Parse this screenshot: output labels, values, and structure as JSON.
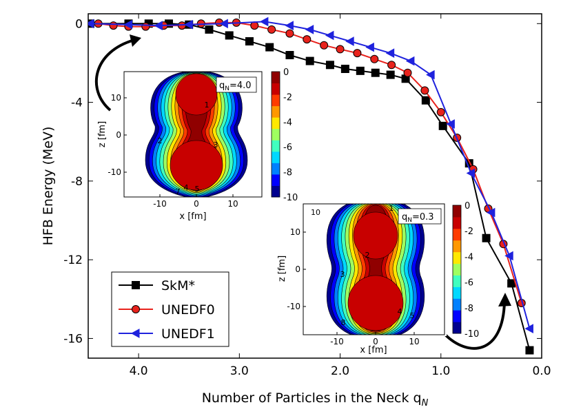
{
  "chart_data": [
    {
      "type": "line",
      "xlabel": "Number of Particles in the Neck q",
      "xlabel_sub": "N",
      "ylabel": "HFB Energy (MeV)",
      "xlim": [
        4.5,
        0.0
      ],
      "ylim": [
        -17,
        0.5
      ],
      "x_ticks": [
        4.0,
        3.0,
        2.0,
        1.0,
        0.0
      ],
      "x_tick_labels": [
        "4.0",
        "3.0",
        "2.0",
        "1.0",
        "0.0"
      ],
      "y_ticks": [
        0,
        -4,
        -8,
        -12,
        -16
      ],
      "y_tick_labels": [
        "0",
        "-4",
        "-8",
        "-12",
        "-16"
      ],
      "legend_position": "bottom-left",
      "series": [
        {
          "name": "SkM*",
          "color": "#000000",
          "marker": "square",
          "x": [
            4.48,
            4.1,
            3.9,
            3.7,
            3.5,
            3.3,
            3.1,
            2.9,
            2.7,
            2.5,
            2.3,
            2.1,
            1.95,
            1.8,
            1.65,
            1.5,
            1.35,
            1.15,
            0.98,
            0.72,
            0.55,
            0.3,
            0.12
          ],
          "y": [
            0.0,
            0.0,
            0.0,
            0.0,
            -0.05,
            -0.3,
            -0.6,
            -0.9,
            -1.2,
            -1.6,
            -1.9,
            -2.1,
            -2.3,
            -2.4,
            -2.5,
            -2.6,
            -2.8,
            -3.9,
            -5.2,
            -7.1,
            -10.9,
            -13.2,
            -16.6
          ]
        },
        {
          "name": "UNEDF0",
          "color": "#e8221c",
          "marker": "circle",
          "x": [
            4.4,
            4.25,
            4.1,
            3.93,
            3.75,
            3.57,
            3.38,
            3.2,
            3.03,
            2.85,
            2.68,
            2.5,
            2.33,
            2.16,
            2.0,
            1.83,
            1.66,
            1.49,
            1.33,
            1.16,
            1.0,
            0.84,
            0.68,
            0.53,
            0.38,
            0.2
          ],
          "y": [
            0.0,
            -0.1,
            -0.15,
            -0.15,
            -0.1,
            -0.1,
            0.0,
            0.05,
            0.05,
            -0.1,
            -0.3,
            -0.5,
            -0.8,
            -1.1,
            -1.3,
            -1.5,
            -1.8,
            -2.1,
            -2.5,
            -3.4,
            -4.5,
            -5.8,
            -7.4,
            -9.4,
            -11.2,
            -14.2
          ]
        },
        {
          "name": "UNEDF1",
          "color": "#1f22dd",
          "marker": "triangle-left",
          "x": [
            4.48,
            4.1,
            3.8,
            3.5,
            3.15,
            2.75,
            2.5,
            2.3,
            2.1,
            1.9,
            1.7,
            1.5,
            1.3,
            1.1,
            0.9,
            0.7,
            0.5,
            0.32,
            0.12
          ],
          "y": [
            0.0,
            -0.05,
            -0.1,
            -0.05,
            0.0,
            0.1,
            -0.1,
            -0.3,
            -0.6,
            -0.9,
            -1.2,
            -1.5,
            -1.9,
            -2.6,
            -5.1,
            -7.6,
            -9.6,
            -11.8,
            -15.5
          ]
        }
      ]
    },
    {
      "type": "heatmap",
      "panel": "inset-top",
      "annotation_main": "q",
      "annotation_sub": "N",
      "annotation_value": "=4.0",
      "xlabel": "x [fm]",
      "ylabel": "z [fm]",
      "x_ticks": [
        -10,
        0,
        10
      ],
      "y_ticks": [
        10,
        0,
        -10
      ],
      "contour_labels": [
        "1",
        "2",
        "3",
        "4",
        "5",
        "7"
      ],
      "colorbar_range": [
        -10,
        0
      ],
      "colorbar_ticks": [
        0,
        -2,
        -4,
        -6,
        -8,
        -10
      ]
    },
    {
      "type": "heatmap",
      "panel": "inset-bottom",
      "annotation_main": "q",
      "annotation_sub": "N",
      "annotation_value": "=0.3",
      "xlabel": "x [fm]",
      "ylabel": "z [fm]",
      "x_ticks": [
        -10,
        0,
        10
      ],
      "y_ticks": [
        10,
        0,
        -10
      ],
      "contour_labels": [
        "1",
        "2",
        "3",
        "4",
        "5",
        "8",
        "10"
      ],
      "colorbar_range": [
        -10,
        0
      ],
      "colorbar_ticks": [
        0,
        -2,
        -4,
        -6,
        -8,
        -10
      ]
    }
  ],
  "colors": {
    "colormap": [
      "#00008f",
      "#0000ff",
      "#0080ff",
      "#00d8ff",
      "#40ffbf",
      "#9fff60",
      "#ffe800",
      "#ff9800",
      "#ff3c00",
      "#c80000",
      "#900000"
    ]
  }
}
